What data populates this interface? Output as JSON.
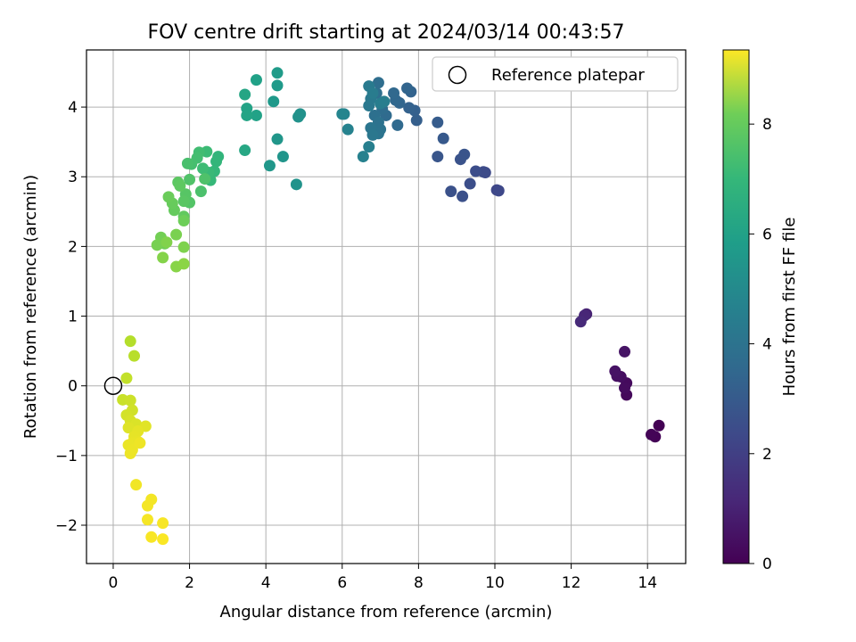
{
  "chart_data": {
    "type": "scatter",
    "title": "FOV centre drift starting at 2024/03/14 00:43:57",
    "xlabel": "Angular distance from reference (arcmin)",
    "ylabel": "Rotation from reference (arcmin)",
    "xlim": [
      -0.7,
      15.0
    ],
    "ylim": [
      -2.55,
      4.82
    ],
    "xticks": [
      0,
      2,
      4,
      6,
      8,
      10,
      12,
      14
    ],
    "yticks": [
      -2,
      -1,
      0,
      1,
      2,
      3,
      4
    ],
    "grid": true,
    "legend": {
      "position": "top-right",
      "entries": [
        "Reference platepar"
      ]
    },
    "reference_point": {
      "x": 0,
      "y": 0,
      "marker": "open-circle"
    },
    "colorbar": {
      "label": "Hours from first FF file",
      "colormap": "viridis",
      "range": [
        0,
        9.35
      ],
      "ticks": [
        0,
        2,
        4,
        6,
        8
      ]
    },
    "points": [
      {
        "x": 14.3,
        "y": -0.57,
        "c": 0.0
      },
      {
        "x": 14.2,
        "y": -0.73,
        "c": 0.05
      },
      {
        "x": 14.1,
        "y": -0.7,
        "c": 0.1
      },
      {
        "x": 13.45,
        "y": -0.13,
        "c": 0.2
      },
      {
        "x": 13.45,
        "y": 0.04,
        "c": 0.25
      },
      {
        "x": 13.4,
        "y": -0.03,
        "c": 0.3
      },
      {
        "x": 13.3,
        "y": 0.13,
        "c": 0.35
      },
      {
        "x": 13.2,
        "y": 0.14,
        "c": 0.4
      },
      {
        "x": 13.15,
        "y": 0.21,
        "c": 0.45
      },
      {
        "x": 13.4,
        "y": 0.49,
        "c": 0.5
      },
      {
        "x": 12.4,
        "y": 1.03,
        "c": 0.9
      },
      {
        "x": 12.35,
        "y": 1.01,
        "c": 1.0
      },
      {
        "x": 12.25,
        "y": 0.92,
        "c": 1.1
      },
      {
        "x": 10.05,
        "y": 2.81,
        "c": 2.0
      },
      {
        "x": 10.1,
        "y": 2.8,
        "c": 2.05
      },
      {
        "x": 9.75,
        "y": 3.06,
        "c": 2.1
      },
      {
        "x": 9.7,
        "y": 3.07,
        "c": 2.15
      },
      {
        "x": 9.5,
        "y": 3.08,
        "c": 2.2
      },
      {
        "x": 9.35,
        "y": 2.9,
        "c": 2.25
      },
      {
        "x": 9.15,
        "y": 2.72,
        "c": 2.3
      },
      {
        "x": 8.85,
        "y": 2.79,
        "c": 2.35
      },
      {
        "x": 9.1,
        "y": 3.25,
        "c": 2.4
      },
      {
        "x": 9.2,
        "y": 3.32,
        "c": 2.45
      },
      {
        "x": 8.5,
        "y": 3.29,
        "c": 2.5
      },
      {
        "x": 8.65,
        "y": 3.55,
        "c": 2.6
      },
      {
        "x": 8.5,
        "y": 3.78,
        "c": 2.7
      },
      {
        "x": 7.95,
        "y": 3.81,
        "c": 2.8
      },
      {
        "x": 7.9,
        "y": 3.95,
        "c": 2.85
      },
      {
        "x": 7.75,
        "y": 3.99,
        "c": 2.9
      },
      {
        "x": 7.8,
        "y": 4.22,
        "c": 2.95
      },
      {
        "x": 7.7,
        "y": 4.27,
        "c": 3.0
      },
      {
        "x": 7.5,
        "y": 4.06,
        "c": 3.05
      },
      {
        "x": 7.4,
        "y": 4.1,
        "c": 3.1
      },
      {
        "x": 7.35,
        "y": 4.2,
        "c": 3.15
      },
      {
        "x": 7.45,
        "y": 3.74,
        "c": 3.2
      },
      {
        "x": 7.15,
        "y": 3.88,
        "c": 3.25
      },
      {
        "x": 7.05,
        "y": 3.97,
        "c": 3.3
      },
      {
        "x": 6.95,
        "y": 4.35,
        "c": 3.35
      },
      {
        "x": 6.9,
        "y": 4.2,
        "c": 3.4
      },
      {
        "x": 6.85,
        "y": 3.88,
        "c": 3.45
      },
      {
        "x": 6.95,
        "y": 3.78,
        "c": 3.5
      },
      {
        "x": 7.0,
        "y": 3.68,
        "c": 3.55
      },
      {
        "x": 6.95,
        "y": 3.62,
        "c": 3.6
      },
      {
        "x": 6.75,
        "y": 3.7,
        "c": 3.65
      },
      {
        "x": 6.8,
        "y": 3.6,
        "c": 3.7
      },
      {
        "x": 6.7,
        "y": 4.02,
        "c": 3.75
      },
      {
        "x": 6.75,
        "y": 4.12,
        "c": 3.8
      },
      {
        "x": 6.7,
        "y": 4.3,
        "c": 3.85
      },
      {
        "x": 6.8,
        "y": 4.2,
        "c": 3.9
      },
      {
        "x": 7.0,
        "y": 4.05,
        "c": 3.95
      },
      {
        "x": 7.1,
        "y": 4.08,
        "c": 4.0
      },
      {
        "x": 6.7,
        "y": 3.43,
        "c": 4.05
      },
      {
        "x": 6.55,
        "y": 3.29,
        "c": 4.1
      },
      {
        "x": 6.15,
        "y": 3.68,
        "c": 4.15
      },
      {
        "x": 6.05,
        "y": 3.9,
        "c": 4.2
      },
      {
        "x": 6.0,
        "y": 3.9,
        "c": 4.25
      },
      {
        "x": 4.9,
        "y": 3.9,
        "c": 4.7
      },
      {
        "x": 4.85,
        "y": 3.86,
        "c": 4.75
      },
      {
        "x": 4.8,
        "y": 2.89,
        "c": 4.8
      },
      {
        "x": 4.45,
        "y": 3.29,
        "c": 4.85
      },
      {
        "x": 4.3,
        "y": 3.54,
        "c": 4.9
      },
      {
        "x": 4.1,
        "y": 3.16,
        "c": 4.95
      },
      {
        "x": 4.2,
        "y": 4.08,
        "c": 5.0
      },
      {
        "x": 4.3,
        "y": 4.31,
        "c": 5.05
      },
      {
        "x": 4.3,
        "y": 4.49,
        "c": 5.1
      },
      {
        "x": 3.75,
        "y": 4.39,
        "c": 5.3
      },
      {
        "x": 3.75,
        "y": 3.88,
        "c": 5.35
      },
      {
        "x": 3.5,
        "y": 3.98,
        "c": 5.4
      },
      {
        "x": 3.5,
        "y": 3.88,
        "c": 5.45
      },
      {
        "x": 3.45,
        "y": 4.18,
        "c": 5.5
      },
      {
        "x": 3.45,
        "y": 3.38,
        "c": 5.55
      },
      {
        "x": 2.75,
        "y": 3.29,
        "c": 6.1
      },
      {
        "x": 2.7,
        "y": 3.22,
        "c": 6.15
      },
      {
        "x": 2.65,
        "y": 3.08,
        "c": 6.2
      },
      {
        "x": 2.55,
        "y": 2.95,
        "c": 6.25
      },
      {
        "x": 2.5,
        "y": 3.06,
        "c": 6.3
      },
      {
        "x": 2.45,
        "y": 3.36,
        "c": 6.35
      },
      {
        "x": 2.35,
        "y": 3.12,
        "c": 6.4
      },
      {
        "x": 2.25,
        "y": 3.35,
        "c": 6.45
      },
      {
        "x": 2.2,
        "y": 3.27,
        "c": 6.5
      },
      {
        "x": 2.05,
        "y": 3.18,
        "c": 6.55
      },
      {
        "x": 1.95,
        "y": 3.19,
        "c": 6.6
      },
      {
        "x": 2.3,
        "y": 2.79,
        "c": 6.65
      },
      {
        "x": 2.4,
        "y": 2.97,
        "c": 6.7
      },
      {
        "x": 2.0,
        "y": 2.96,
        "c": 6.75
      },
      {
        "x": 2.0,
        "y": 2.63,
        "c": 6.8
      },
      {
        "x": 1.9,
        "y": 2.75,
        "c": 6.85
      },
      {
        "x": 1.85,
        "y": 2.65,
        "c": 6.9
      },
      {
        "x": 1.7,
        "y": 2.92,
        "c": 6.95
      },
      {
        "x": 1.75,
        "y": 2.87,
        "c": 7.0
      },
      {
        "x": 1.85,
        "y": 2.43,
        "c": 7.05
      },
      {
        "x": 1.6,
        "y": 2.52,
        "c": 7.1
      },
      {
        "x": 1.55,
        "y": 2.62,
        "c": 7.15
      },
      {
        "x": 1.45,
        "y": 2.71,
        "c": 7.2
      },
      {
        "x": 1.85,
        "y": 2.37,
        "c": 7.25
      },
      {
        "x": 1.35,
        "y": 2.04,
        "c": 7.3
      },
      {
        "x": 1.25,
        "y": 2.13,
        "c": 7.35
      },
      {
        "x": 1.15,
        "y": 2.02,
        "c": 7.4
      },
      {
        "x": 1.65,
        "y": 2.17,
        "c": 7.45
      },
      {
        "x": 1.85,
        "y": 1.99,
        "c": 7.5
      },
      {
        "x": 1.4,
        "y": 2.06,
        "c": 7.55
      },
      {
        "x": 1.3,
        "y": 1.84,
        "c": 7.6
      },
      {
        "x": 1.65,
        "y": 1.71,
        "c": 7.65
      },
      {
        "x": 1.85,
        "y": 1.75,
        "c": 7.7
      },
      {
        "x": 0.45,
        "y": 0.64,
        "c": 8.3
      },
      {
        "x": 0.55,
        "y": 0.43,
        "c": 8.35
      },
      {
        "x": 0.35,
        "y": 0.11,
        "c": 8.5
      },
      {
        "x": 0.25,
        "y": -0.2,
        "c": 8.6
      },
      {
        "x": 0.45,
        "y": -0.21,
        "c": 8.65
      },
      {
        "x": 0.5,
        "y": -0.35,
        "c": 8.7
      },
      {
        "x": 0.35,
        "y": -0.42,
        "c": 8.75
      },
      {
        "x": 0.45,
        "y": -0.5,
        "c": 8.8
      },
      {
        "x": 0.6,
        "y": -0.55,
        "c": 8.85
      },
      {
        "x": 0.4,
        "y": -0.6,
        "c": 8.9
      },
      {
        "x": 0.85,
        "y": -0.58,
        "c": 8.95
      },
      {
        "x": 0.65,
        "y": -0.65,
        "c": 9.0
      },
      {
        "x": 0.55,
        "y": -0.73,
        "c": 9.02
      },
      {
        "x": 0.65,
        "y": -0.8,
        "c": 9.04
      },
      {
        "x": 0.5,
        "y": -0.82,
        "c": 9.06
      },
      {
        "x": 0.4,
        "y": -0.85,
        "c": 9.08
      },
      {
        "x": 0.5,
        "y": -0.92,
        "c": 9.1
      },
      {
        "x": 0.45,
        "y": -0.97,
        "c": 9.12
      },
      {
        "x": 0.7,
        "y": -0.82,
        "c": 9.14
      },
      {
        "x": 0.6,
        "y": -1.42,
        "c": 9.18
      },
      {
        "x": 1.0,
        "y": -1.63,
        "c": 9.2
      },
      {
        "x": 0.9,
        "y": -1.72,
        "c": 9.22
      },
      {
        "x": 0.9,
        "y": -1.92,
        "c": 9.24
      },
      {
        "x": 1.3,
        "y": -1.97,
        "c": 9.26
      },
      {
        "x": 1.0,
        "y": -2.17,
        "c": 9.28
      },
      {
        "x": 1.3,
        "y": -2.2,
        "c": 9.3
      }
    ]
  }
}
